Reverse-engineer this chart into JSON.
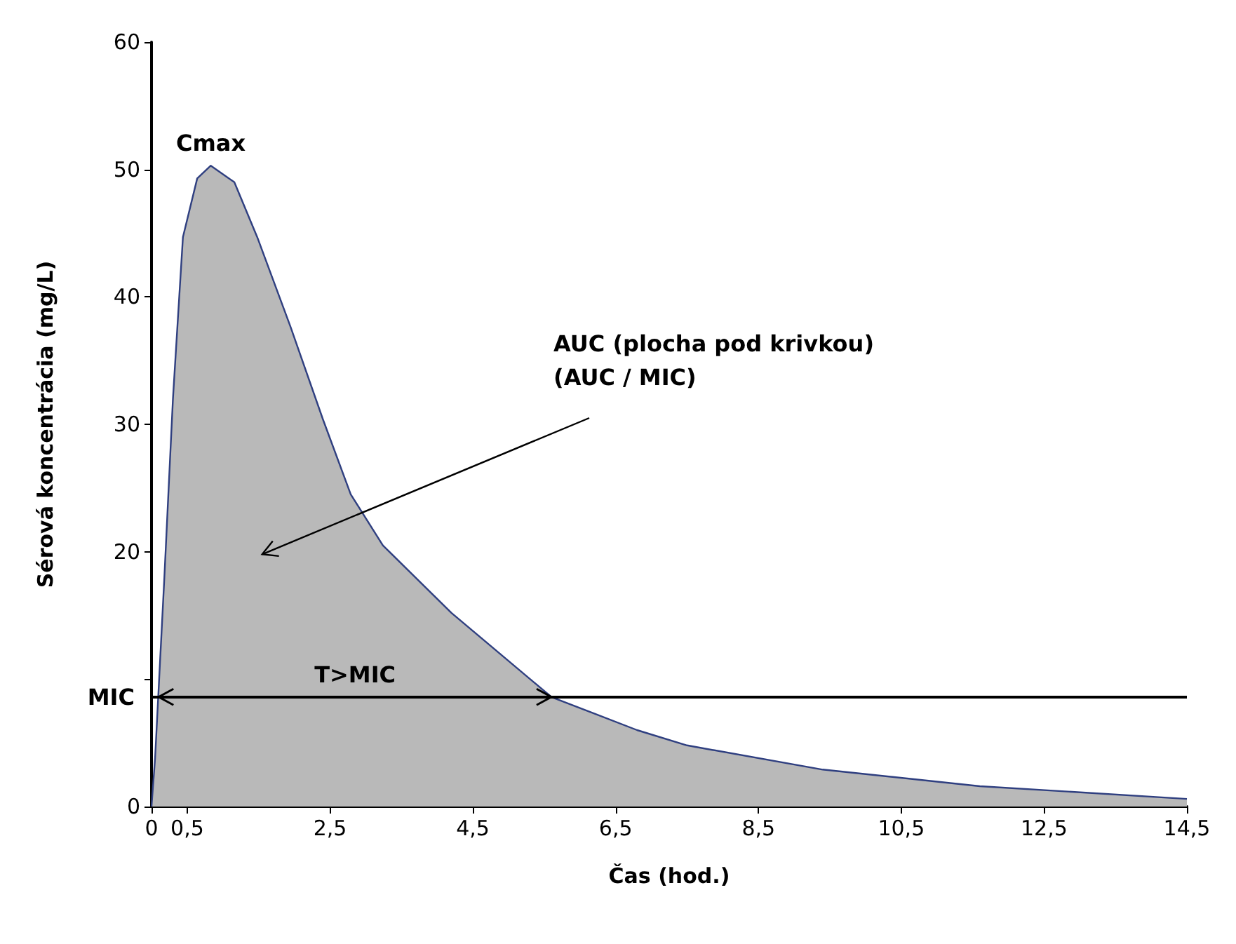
{
  "chart_data": {
    "type": "area",
    "xlabel": "Čas (hod.)",
    "ylabel": "Sérová koncentrácia (mg/L)",
    "x": [
      0,
      0.05,
      0.18,
      0.3,
      0.44,
      0.64,
      0.83,
      1.16,
      1.48,
      1.95,
      2.4,
      2.79,
      3.24,
      4.2,
      5.6,
      6.8,
      7.5,
      9.4,
      11.6,
      14.5
    ],
    "values": [
      0,
      3.8,
      18,
      32,
      44.7,
      49.3,
      50.3,
      49,
      44.7,
      37.6,
      30.4,
      24.5,
      20.5,
      15.2,
      8.6,
      6.0,
      4.8,
      2.9,
      1.6,
      0.6
    ],
    "color": "#b9b9b9",
    "marker": "none",
    "xlim": [
      0,
      14.5
    ],
    "xticks": [
      0,
      {
        "value": 0.5,
        "label": "0,5"
      },
      {
        "value": 2.5,
        "label": "2,5"
      },
      {
        "value": 4.5,
        "label": "4,5"
      },
      {
        "value": 6.5,
        "label": "6,5"
      },
      {
        "value": 8.5,
        "label": "8,5"
      },
      {
        "value": 10.5,
        "label": "10,5"
      },
      {
        "value": 12.5,
        "label": "12,5"
      },
      {
        "value": 14.5,
        "label": "14,5"
      }
    ],
    "ylim": [
      0,
      60
    ],
    "yticks": [
      0,
      {
        "value": 10,
        "label": null
      },
      20,
      30,
      40,
      50,
      60
    ],
    "ref_lines": [
      {
        "axis": "y",
        "value": 8.6,
        "label": "MIC",
        "color": "#000000"
      }
    ],
    "annotations": [
      {
        "text": "Cmax",
        "x": 0.83,
        "y": 50.3
      },
      "AUC (plocha pod krivkou)\n(AUC / MIC)",
      {
        "text": "T>MIC",
        "x": 2.85,
        "y": 8.6
      }
    ]
  }
}
